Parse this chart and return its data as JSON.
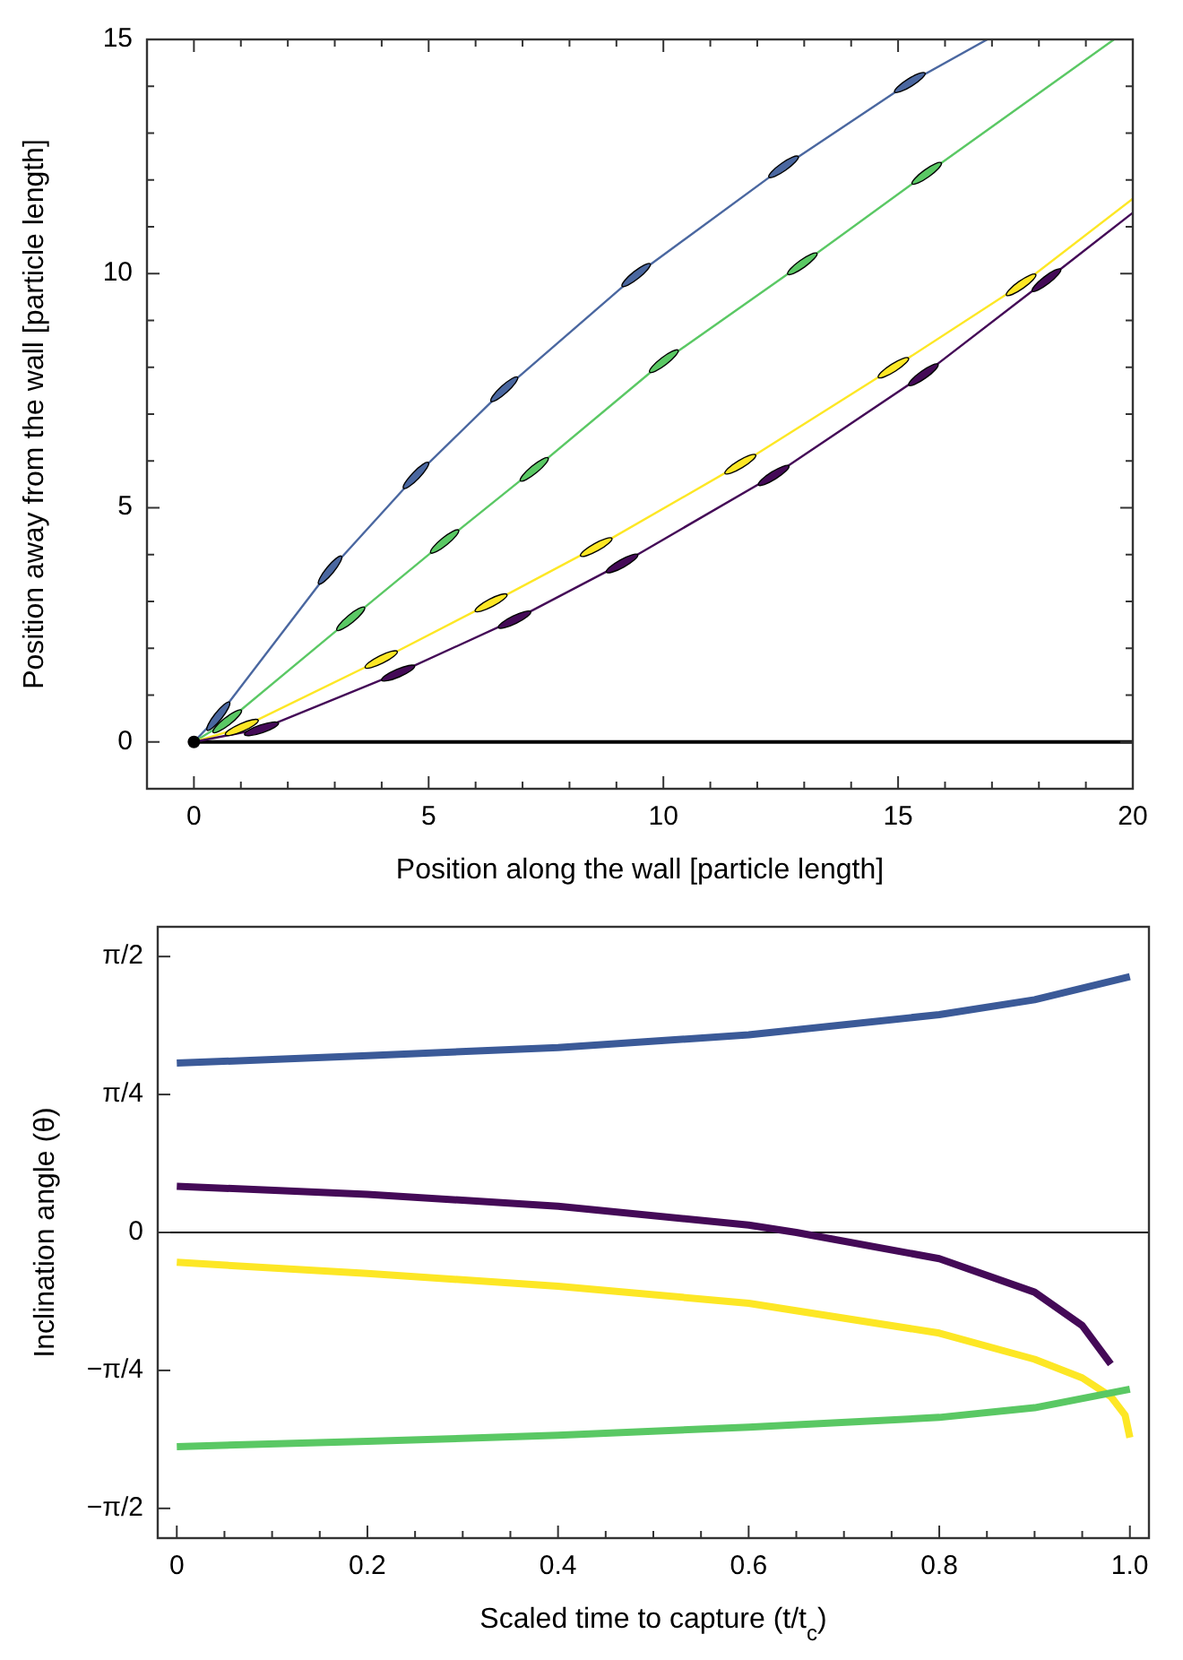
{
  "chart_data": [
    {
      "type": "line",
      "xlabel": "Position along the wall [particle length]",
      "ylabel": "Position away from the wall [particle length]",
      "xlim": [
        -1,
        20
      ],
      "ylim": [
        -1,
        15
      ],
      "xticks": [
        {
          "value": -1,
          "label": null
        },
        0,
        {
          "value": 1,
          "label": null
        },
        {
          "value": 2,
          "label": null
        },
        {
          "value": 3,
          "label": null
        },
        {
          "value": 4,
          "label": null
        },
        5,
        {
          "value": 6,
          "label": null
        },
        {
          "value": 7,
          "label": null
        },
        {
          "value": 8,
          "label": null
        },
        {
          "value": 9,
          "label": null
        },
        10,
        {
          "value": 11,
          "label": null
        },
        {
          "value": 12,
          "label": null
        },
        {
          "value": 13,
          "label": null
        },
        {
          "value": 14,
          "label": null
        },
        15,
        {
          "value": 16,
          "label": null
        },
        {
          "value": 17,
          "label": null
        },
        {
          "value": 18,
          "label": null
        },
        {
          "value": 19,
          "label": null
        },
        20
      ],
      "yticks": [
        {
          "value": -1,
          "label": null
        },
        0,
        {
          "value": 1,
          "label": null
        },
        {
          "value": 2,
          "label": null
        },
        {
          "value": 3,
          "label": null
        },
        {
          "value": 4,
          "label": null
        },
        5,
        {
          "value": 6,
          "label": null
        },
        {
          "value": 7,
          "label": null
        },
        {
          "value": 8,
          "label": null
        },
        {
          "value": 9,
          "label": null
        },
        10,
        {
          "value": 11,
          "label": null
        },
        {
          "value": 12,
          "label": null
        },
        {
          "value": 13,
          "label": null
        },
        {
          "value": 14,
          "label": null
        },
        15
      ],
      "grid": false,
      "ref_lines": [
        {
          "axis": "y",
          "value": 0,
          "color": "#000000"
        }
      ],
      "series": [
        {
          "color": "#4a67a0",
          "x": [
            0,
            0.52,
            2.9,
            4.73,
            6.61,
            9.42,
            12.56,
            15.25,
            16.9
          ],
          "values": [
            0,
            0.55,
            3.67,
            5.69,
            7.53,
            9.97,
            12.28,
            14.08,
            15
          ]
        },
        {
          "color": "#5ac864",
          "x": [
            0,
            0.71,
            3.34,
            5.34,
            7.25,
            10.01,
            12.96,
            15.61,
            19.6
          ],
          "values": [
            0,
            0.44,
            2.63,
            4.28,
            5.82,
            8.13,
            10.21,
            12.14,
            15
          ]
        },
        {
          "color": "#fde725",
          "x": [
            0,
            1.02,
            3.99,
            6.33,
            8.57,
            11.64,
            14.9,
            17.62,
            20
          ],
          "values": [
            0,
            0.31,
            1.76,
            2.97,
            4.16,
            5.93,
            7.99,
            9.76,
            11.6
          ]
        },
        {
          "color": "#440a57",
          "x": [
            0,
            1.44,
            4.35,
            6.83,
            9.12,
            12.35,
            15.54,
            18.16,
            20
          ],
          "values": [
            0,
            0.28,
            1.47,
            2.61,
            3.81,
            5.69,
            7.84,
            9.86,
            11.3
          ]
        },
        {
          "type": "scatter",
          "color": "#000000",
          "marker": "circle",
          "x": [
            0
          ],
          "values": [
            0
          ]
        }
      ]
    },
    {
      "type": "line",
      "xlabel": "Scaled time to capture (t/t$_{c}$)",
      "ylabel": "Inclination angle (θ)",
      "xlim": [
        -0.02,
        1.02
      ],
      "ylim": [
        -1.74,
        1.74
      ],
      "xticks": [
        0,
        {
          "value": 0.05,
          "label": null
        },
        {
          "value": 0.1,
          "label": null
        },
        {
          "value": 0.15,
          "label": null
        },
        {
          "value": 0.2,
          "label": "0.2"
        },
        {
          "value": 0.25,
          "label": null
        },
        {
          "value": 0.3,
          "label": null
        },
        {
          "value": 0.35,
          "label": null
        },
        {
          "value": 0.4,
          "label": "0.4"
        },
        {
          "value": 0.45,
          "label": null
        },
        {
          "value": 0.5,
          "label": null
        },
        {
          "value": 0.55,
          "label": null
        },
        {
          "value": 0.6,
          "label": "0.6"
        },
        {
          "value": 0.65,
          "label": null
        },
        {
          "value": 0.7,
          "label": null
        },
        {
          "value": 0.75,
          "label": null
        },
        {
          "value": 0.8,
          "label": "0.8"
        },
        {
          "value": 0.85,
          "label": null
        },
        {
          "value": 0.9,
          "label": null
        },
        {
          "value": 0.95,
          "label": null
        },
        {
          "value": 1,
          "label": "1.0"
        }
      ],
      "yticks": [
        {
          "value": -1.5708,
          "label": "−π/2"
        },
        {
          "value": -0.7854,
          "label": "−π/4"
        },
        0,
        {
          "value": 0.7854,
          "label": "π/4"
        },
        {
          "value": 1.5708,
          "label": "π/2"
        }
      ],
      "grid": false,
      "ref_lines": [
        {
          "axis": "y",
          "value": 0,
          "color": "#000000"
        }
      ],
      "series": [
        {
          "color": "#3b5a98",
          "x": [
            0,
            0.2,
            0.4,
            0.6,
            0.8,
            0.9,
            1.0
          ],
          "values": [
            0.964,
            1.006,
            1.053,
            1.125,
            1.24,
            1.325,
            1.456
          ]
        },
        {
          "color": "#440a57",
          "x": [
            0,
            0.2,
            0.4,
            0.6,
            0.65,
            0.8,
            0.9,
            0.95,
            0.98
          ],
          "values": [
            0.263,
            0.217,
            0.149,
            0.042,
            0,
            -0.149,
            -0.34,
            -0.53,
            -0.75
          ]
        },
        {
          "color": "#fde725",
          "x": [
            0,
            0.2,
            0.4,
            0.6,
            0.8,
            0.9,
            0.95,
            0.98,
            0.995,
            1.0
          ],
          "values": [
            -0.17,
            -0.234,
            -0.306,
            -0.403,
            -0.573,
            -0.722,
            -0.828,
            -0.934,
            -1.04,
            -1.168
          ]
        },
        {
          "color": "#5ac864",
          "x": [
            0,
            0.2,
            0.4,
            0.6,
            0.8,
            0.9,
            1.0
          ],
          "values": [
            -1.219,
            -1.189,
            -1.155,
            -1.108,
            -1.053,
            -0.998,
            -0.892
          ]
        }
      ]
    }
  ]
}
